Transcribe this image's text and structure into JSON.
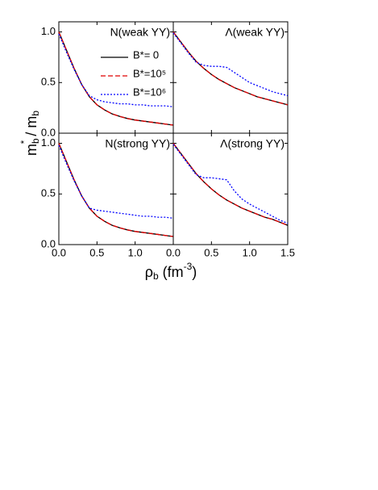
{
  "ylabel": [
    "m",
    "b",
    "*",
    " / m",
    "b"
  ],
  "xlabel": [
    "ρ",
    "b",
    " (fm",
    "-3",
    ")"
  ],
  "chart_data": [
    {
      "type": "line",
      "title": "N(weak YY)",
      "x": [
        0,
        0.1,
        0.2,
        0.3,
        0.4,
        0.5,
        0.6,
        0.7,
        0.8,
        0.9,
        1.0,
        1.1,
        1.2,
        1.3,
        1.4,
        1.5
      ],
      "xlim": [
        0,
        1.5
      ],
      "ylim": [
        0,
        1.1
      ],
      "yticks": [
        {
          "value": 0,
          "label": "0.0"
        },
        {
          "value": 0.5,
          "label": "0.5"
        },
        {
          "value": 1,
          "label": "1.0"
        }
      ],
      "series": [
        {
          "name": "B*= 0",
          "color": "#000000",
          "style": "solid",
          "values": [
            1.0,
            0.82,
            0.64,
            0.48,
            0.36,
            0.28,
            0.23,
            0.19,
            0.165,
            0.145,
            0.13,
            0.12,
            0.11,
            0.1,
            0.09,
            0.08
          ]
        },
        {
          "name": "B*=10⁵",
          "color": "#e00000",
          "style": "dashed",
          "values": [
            1.0,
            0.82,
            0.64,
            0.48,
            0.36,
            0.28,
            0.23,
            0.19,
            0.165,
            0.145,
            0.13,
            0.12,
            0.11,
            0.1,
            0.09,
            0.08
          ]
        },
        {
          "name": "B*=10⁶",
          "color": "#0000ff",
          "style": "dotted",
          "values": [
            0.98,
            0.8,
            0.63,
            0.48,
            0.37,
            0.33,
            0.31,
            0.3,
            0.29,
            0.29,
            0.28,
            0.28,
            0.27,
            0.27,
            0.27,
            0.26
          ]
        }
      ]
    },
    {
      "type": "line",
      "title": "Λ(weak YY)",
      "x": [
        0,
        0.1,
        0.2,
        0.3,
        0.4,
        0.5,
        0.6,
        0.7,
        0.8,
        0.9,
        1.0,
        1.1,
        1.2,
        1.3,
        1.4,
        1.5
      ],
      "xlim": [
        0,
        1.5
      ],
      "ylim": [
        0,
        1.1
      ],
      "series": [
        {
          "color": "#000000",
          "style": "solid",
          "values": [
            1.0,
            0.9,
            0.8,
            0.71,
            0.64,
            0.58,
            0.53,
            0.49,
            0.45,
            0.42,
            0.39,
            0.36,
            0.34,
            0.32,
            0.3,
            0.28
          ]
        },
        {
          "color": "#e00000",
          "style": "dashed",
          "values": [
            1.0,
            0.9,
            0.8,
            0.71,
            0.64,
            0.58,
            0.53,
            0.49,
            0.45,
            0.42,
            0.39,
            0.36,
            0.34,
            0.32,
            0.3,
            0.28
          ]
        },
        {
          "color": "#0000ff",
          "style": "dotted",
          "values": [
            0.99,
            0.89,
            0.79,
            0.7,
            0.67,
            0.66,
            0.66,
            0.65,
            0.6,
            0.55,
            0.5,
            0.47,
            0.44,
            0.41,
            0.39,
            0.37
          ]
        }
      ]
    },
    {
      "type": "line",
      "title": "N(strong YY)",
      "x": [
        0,
        0.1,
        0.2,
        0.3,
        0.4,
        0.5,
        0.6,
        0.7,
        0.8,
        0.9,
        1.0,
        1.1,
        1.2,
        1.3,
        1.4,
        1.5
      ],
      "xlim": [
        0,
        1.5
      ],
      "ylim": [
        0,
        1.1
      ],
      "xticks": [
        {
          "value": 0,
          "label": "0.0"
        },
        {
          "value": 0.5,
          "label": "0.5"
        },
        {
          "value": 1,
          "label": "1.0"
        }
      ],
      "yticks": [
        {
          "value": 0,
          "label": "0.0"
        },
        {
          "value": 0.5,
          "label": "0.5"
        },
        {
          "value": 1,
          "label": "1.0"
        }
      ],
      "series": [
        {
          "color": "#000000",
          "style": "solid",
          "values": [
            1.0,
            0.82,
            0.64,
            0.48,
            0.36,
            0.28,
            0.23,
            0.19,
            0.165,
            0.145,
            0.13,
            0.12,
            0.11,
            0.1,
            0.09,
            0.08
          ]
        },
        {
          "color": "#e00000",
          "style": "dashed",
          "values": [
            1.0,
            0.82,
            0.64,
            0.48,
            0.36,
            0.28,
            0.23,
            0.19,
            0.165,
            0.145,
            0.13,
            0.12,
            0.11,
            0.1,
            0.09,
            0.08
          ]
        },
        {
          "color": "#0000ff",
          "style": "dotted",
          "values": [
            0.98,
            0.8,
            0.63,
            0.48,
            0.36,
            0.34,
            0.33,
            0.32,
            0.31,
            0.3,
            0.29,
            0.28,
            0.28,
            0.27,
            0.27,
            0.26
          ]
        }
      ]
    },
    {
      "type": "line",
      "title": "Λ(strong YY)",
      "x": [
        0,
        0.1,
        0.2,
        0.3,
        0.4,
        0.5,
        0.6,
        0.7,
        0.8,
        0.9,
        1.0,
        1.1,
        1.2,
        1.3,
        1.4,
        1.5
      ],
      "xlim": [
        0,
        1.5
      ],
      "ylim": [
        0,
        1.1
      ],
      "xticks": [
        {
          "value": 0,
          "label": "0.0"
        },
        {
          "value": 0.5,
          "label": "0.5"
        },
        {
          "value": 1,
          "label": "1.0"
        },
        {
          "value": 1.5,
          "label": "1.5"
        }
      ],
      "series": [
        {
          "color": "#000000",
          "style": "solid",
          "values": [
            1.0,
            0.9,
            0.8,
            0.7,
            0.62,
            0.55,
            0.49,
            0.44,
            0.4,
            0.36,
            0.33,
            0.3,
            0.27,
            0.25,
            0.22,
            0.19
          ]
        },
        {
          "color": "#e00000",
          "style": "dashed",
          "values": [
            1.0,
            0.9,
            0.8,
            0.7,
            0.62,
            0.55,
            0.49,
            0.44,
            0.4,
            0.36,
            0.33,
            0.3,
            0.27,
            0.25,
            0.22,
            0.19
          ]
        },
        {
          "color": "#0000ff",
          "style": "dotted",
          "values": [
            0.99,
            0.89,
            0.79,
            0.69,
            0.66,
            0.66,
            0.65,
            0.64,
            0.53,
            0.45,
            0.4,
            0.36,
            0.32,
            0.28,
            0.24,
            0.21
          ]
        }
      ]
    }
  ]
}
